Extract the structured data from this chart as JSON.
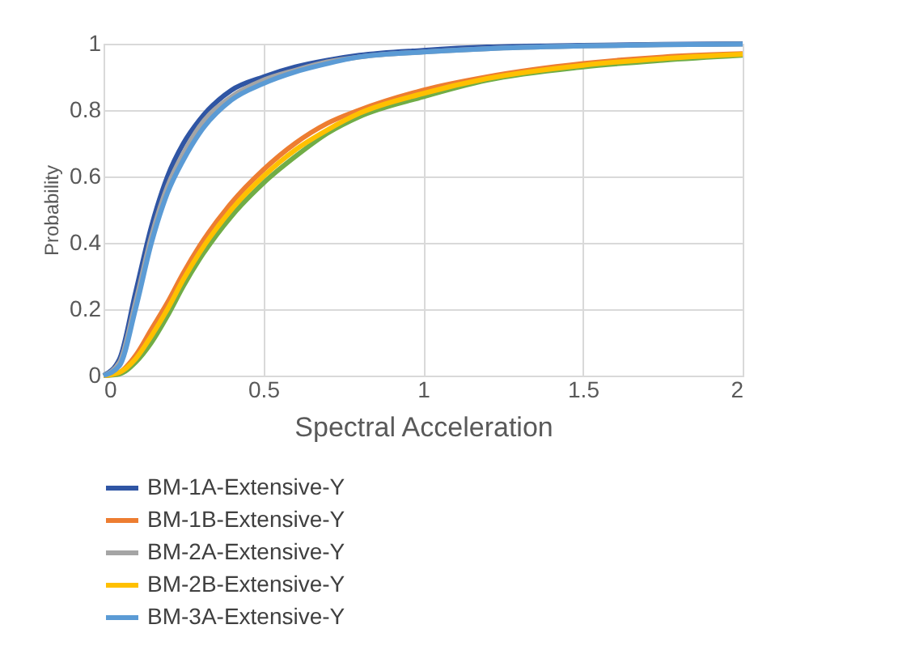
{
  "chart_data": {
    "type": "line",
    "xlabel": "Spectral Acceleration",
    "ylabel": "Probability",
    "x": [
      0,
      0.05,
      0.1,
      0.15,
      0.2,
      0.25,
      0.3,
      0.4,
      0.5,
      0.6,
      0.7,
      0.8,
      1.0,
      1.2,
      1.5,
      1.75,
      2.0
    ],
    "series": [
      {
        "name": "BM-1A-Extensive-Y",
        "color": "#2f55a4",
        "values": [
          0,
          0.05,
          0.25,
          0.45,
          0.6,
          0.7,
          0.77,
          0.86,
          0.9,
          0.93,
          0.95,
          0.965,
          0.98,
          0.99,
          0.995,
          0.998,
          1.0
        ]
      },
      {
        "name": "BM-1B-Extensive-Y",
        "color": "#ed7d31",
        "values": [
          0,
          0.01,
          0.06,
          0.14,
          0.22,
          0.31,
          0.39,
          0.52,
          0.62,
          0.7,
          0.76,
          0.8,
          0.86,
          0.9,
          0.94,
          0.96,
          0.97
        ]
      },
      {
        "name": "BM-2A-Extensive-Y",
        "color": "#a5a5a5",
        "values": [
          0,
          0.04,
          0.22,
          0.42,
          0.57,
          0.67,
          0.75,
          0.84,
          0.89,
          0.92,
          0.945,
          0.96,
          0.975,
          0.985,
          0.993,
          0.997,
          0.999
        ]
      },
      {
        "name": "BM-2B-Extensive-Y",
        "color": "#ffc000",
        "values": [
          0,
          0.01,
          0.05,
          0.12,
          0.2,
          0.29,
          0.37,
          0.5,
          0.6,
          0.68,
          0.74,
          0.79,
          0.85,
          0.895,
          0.935,
          0.955,
          0.968
        ]
      },
      {
        "name": "BM-3A-Extensive-Y",
        "color": "#5b9bd5",
        "values": [
          0,
          0.03,
          0.2,
          0.4,
          0.55,
          0.65,
          0.73,
          0.83,
          0.88,
          0.915,
          0.94,
          0.96,
          0.975,
          0.985,
          0.993,
          0.997,
          0.999
        ]
      },
      {
        "color": "#70ad47",
        "values": [
          0,
          0.005,
          0.04,
          0.1,
          0.18,
          0.27,
          0.35,
          0.48,
          0.58,
          0.66,
          0.73,
          0.78,
          0.84,
          0.89,
          0.93,
          0.95,
          0.965
        ]
      }
    ],
    "xlim": [
      0,
      2
    ],
    "xticks": [
      0,
      0.5,
      1,
      1.5,
      2
    ],
    "ylim": [
      0,
      1
    ],
    "yticks": [
      0,
      0.2,
      0.4,
      0.6,
      0.8,
      1
    ],
    "grid": true,
    "legend": "bottom",
    "line_style": "solid",
    "marker": "none"
  }
}
